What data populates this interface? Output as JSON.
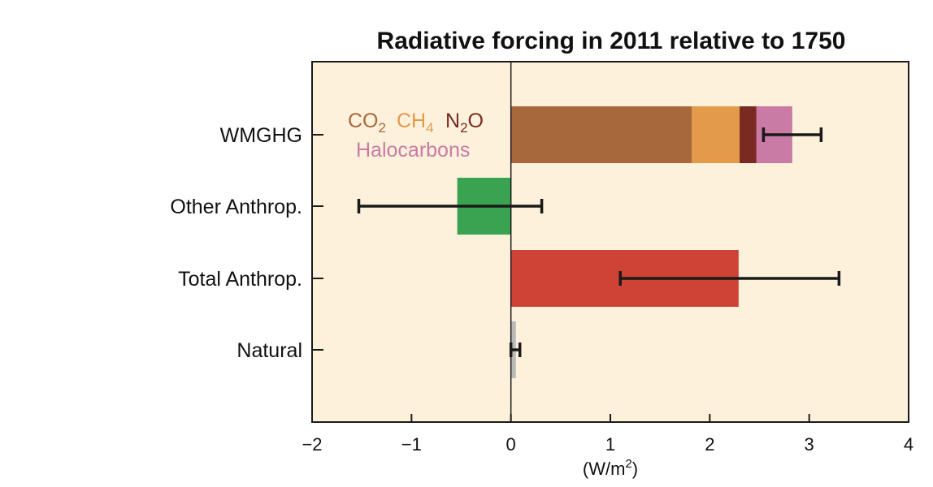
{
  "chart_data": {
    "type": "bar",
    "orientation": "horizontal",
    "title": "Radiative forcing in 2011 relative to 1750",
    "xlabel": "(W/m²)",
    "xlabel_parts": {
      "base": "(W/m",
      "sup": "2",
      "close": ")"
    },
    "xlim": [
      -2,
      4
    ],
    "xticks": [
      -2,
      -1,
      0,
      1,
      2,
      3,
      4
    ],
    "xtick_labels": [
      "−2",
      "−1",
      "0",
      "1",
      "2",
      "3",
      "4"
    ],
    "grid": false,
    "background_color": "#fdf1dc",
    "categories": [
      "WMGHG",
      "Other Anthrop.",
      "Total Anthrop.",
      "Natural"
    ],
    "series": [
      {
        "name": "CO2",
        "color": "#a7683b",
        "values": [
          1.82,
          0,
          0,
          0
        ]
      },
      {
        "name": "CH4",
        "color": "#e39a4b",
        "values": [
          0.48,
          0,
          0,
          0
        ]
      },
      {
        "name": "N2O",
        "color": "#7a2a22",
        "values": [
          0.17,
          0,
          0,
          0
        ]
      },
      {
        "name": "Halocarbons",
        "color": "#c97ba5",
        "values": [
          0.36,
          0,
          0,
          0
        ]
      },
      {
        "name": "Other Anthrop.",
        "color": "#3aa352",
        "values": [
          0,
          -0.54,
          0,
          0
        ]
      },
      {
        "name": "Total Anthrop.",
        "color": "#cf4236",
        "values": [
          0,
          0,
          2.29,
          0
        ]
      },
      {
        "name": "Natural",
        "color": "#b9b9b9",
        "values": [
          0,
          0,
          0,
          0.05
        ]
      }
    ],
    "error_bars": [
      {
        "category": "WMGHG",
        "low": 2.54,
        "high": 3.12
      },
      {
        "category": "Other Anthrop.",
        "low": -1.53,
        "high": 0.31
      },
      {
        "category": "Total Anthrop.",
        "low": 1.1,
        "high": 3.3
      },
      {
        "category": "Natural",
        "low": 0.0,
        "high": 0.09
      }
    ],
    "legend": {
      "placement": "inside top-left",
      "entries": [
        {
          "base": "CO",
          "sub": "2",
          "color": "#a7683b"
        },
        {
          "base": "CH",
          "sub": "4",
          "color": "#e39a4b"
        },
        {
          "base": "N",
          "sub": "2",
          "tail": "O",
          "color": "#7a2a22"
        },
        {
          "base": "Halocarbons",
          "color": "#c97ba5"
        }
      ]
    }
  }
}
